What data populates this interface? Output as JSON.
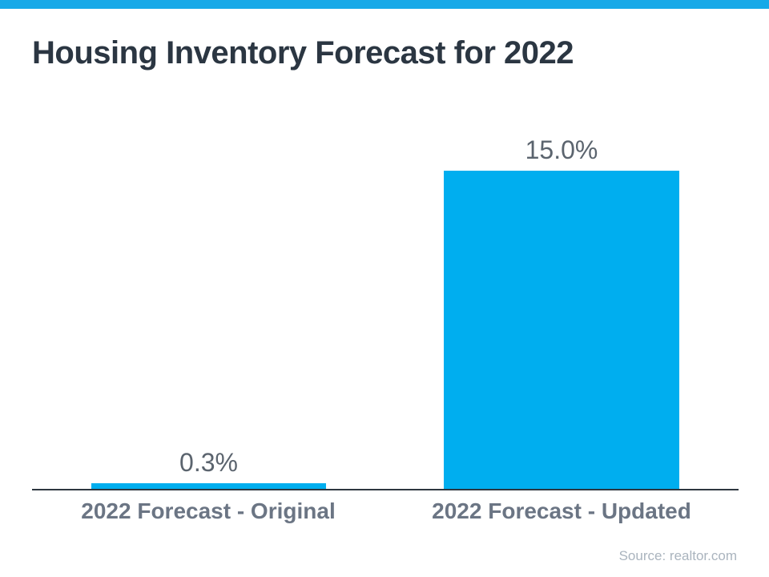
{
  "page": {
    "title": "Housing Inventory Forecast for 2022",
    "source_note": "Source: realtor.com"
  },
  "theme": {
    "stripe_color": "#17A9E8",
    "bar_color": "#00AEEF",
    "title_color": "#2B3642",
    "axis_color": "#2E3740",
    "value_label_color": "#5B646E",
    "category_label_color": "#6B7584",
    "source_color": "#AAB4BE"
  },
  "chart_data": {
    "type": "bar",
    "title": "Housing Inventory Forecast for 2022",
    "categories": [
      "2022 Forecast - Original",
      "2022 Forecast - Updated"
    ],
    "values": [
      0.3,
      15.0
    ],
    "value_labels": [
      "0.3%",
      "15.0%"
    ],
    "unit": "%",
    "ylim": [
      0,
      15
    ],
    "xlabel": "",
    "ylabel": "",
    "grid": false,
    "legend": false,
    "bar_color": "#00AEEF",
    "source": "Source: realtor.com"
  }
}
